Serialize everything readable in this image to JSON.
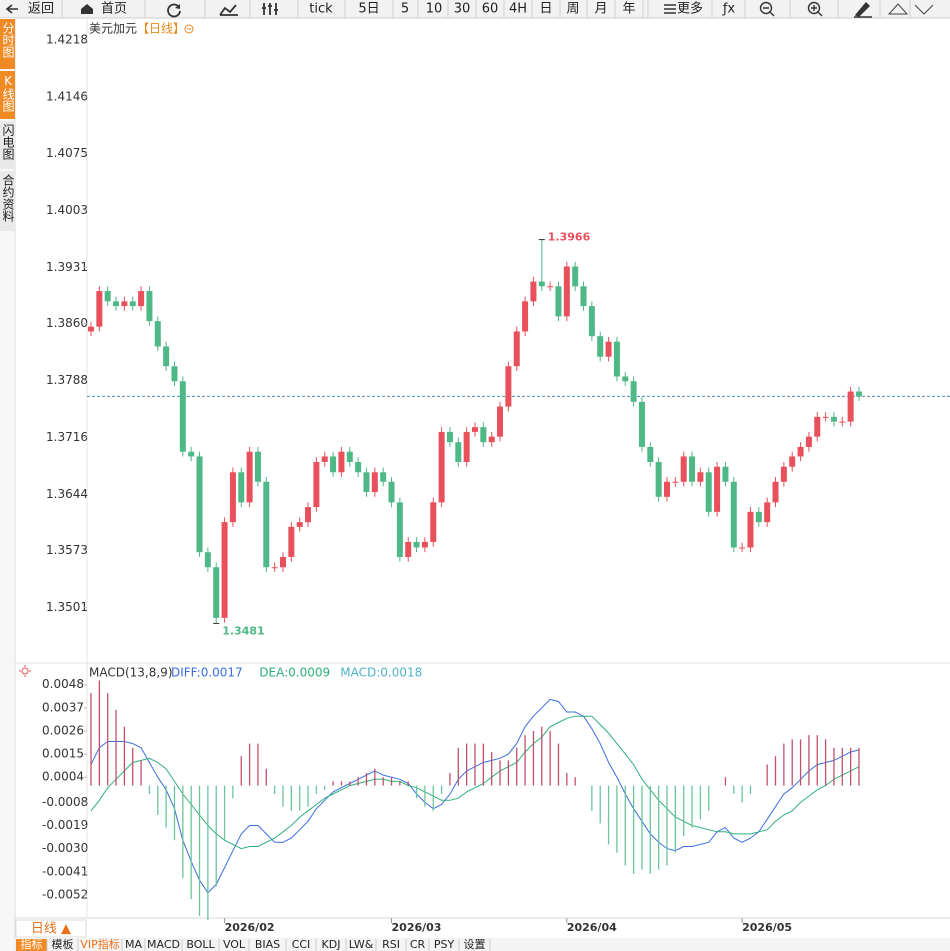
{
  "toolbar": [
    "返回",
    "首页",
    "tick",
    "5日",
    "5",
    "10",
    "30",
    "60",
    "4H",
    "日",
    "周",
    "月",
    "年",
    "更多",
    "ƒx"
  ],
  "sidebar": [
    "分时图",
    "K线图",
    "闪电图",
    "合约资料"
  ],
  "bottom": {
    "period": "日线 ▲",
    "tabs": [
      "指标",
      "模板",
      "VIP指标",
      "MA",
      "MACD",
      "BOLL",
      "VOL",
      "BIAS",
      "CCI",
      "KDJ",
      "LW&",
      "RSI",
      "CR",
      "PSY",
      "设置"
    ]
  },
  "chart_data": [
    {
      "type": "candlestick",
      "title": "美元加元",
      "subtitle": "【日线】",
      "up_color": "#e8505b",
      "down_color": "#4fb887",
      "categories": [
        null,
        null,
        null,
        null,
        null,
        null,
        null,
        null,
        null,
        null,
        null,
        null,
        null,
        null,
        null,
        null,
        "2026/02",
        null,
        null,
        null,
        null,
        null,
        null,
        null,
        null,
        null,
        null,
        null,
        null,
        null,
        null,
        null,
        null,
        null,
        null,
        null,
        "2026/03",
        null,
        null,
        null,
        null,
        null,
        null,
        null,
        null,
        null,
        null,
        null,
        null,
        null,
        null,
        null,
        null,
        null,
        null,
        null,
        null,
        "2026/04",
        null,
        null,
        null,
        null,
        null,
        null,
        null,
        null,
        null,
        null,
        null,
        null,
        null,
        null,
        null,
        null,
        null,
        null,
        null,
        null,
        "2026/05",
        null,
        null,
        null,
        null,
        null,
        null,
        null,
        null,
        null,
        null,
        null,
        null,
        null,
        null
      ],
      "open": [
        1.385,
        1.3856,
        1.3901,
        1.3888,
        1.3882,
        1.3888,
        1.3882,
        1.3901,
        1.3863,
        1.3831,
        1.3806,
        1.3787,
        1.3698,
        1.3692,
        1.3571,
        1.3552,
        1.3488,
        1.3609,
        1.3672,
        1.3634,
        1.3698,
        1.366,
        1.3552,
        1.3552,
        1.3565,
        1.3603,
        1.3609,
        1.3628,
        1.3685,
        1.3692,
        1.3672,
        1.3698,
        1.3685,
        1.3672,
        1.3647,
        1.3672,
        1.366,
        1.3634,
        1.3565,
        1.3584,
        1.3577,
        1.3584,
        1.3634,
        1.3723,
        1.371,
        1.3685,
        1.3723,
        1.3729,
        1.371,
        1.3717,
        1.3755,
        1.3806,
        1.385,
        1.3888,
        1.3913,
        1.3907,
        1.3907,
        1.3869,
        1.3932,
        1.3907,
        1.3882,
        1.3844,
        1.3818,
        1.3837,
        1.3793,
        1.3787,
        1.3761,
        1.3704,
        1.3685,
        1.3641,
        1.366,
        1.366,
        1.3692,
        1.366,
        1.3672,
        1.3622,
        1.3679,
        1.366,
        1.3577,
        1.3577,
        1.3622,
        1.3609,
        1.3634,
        1.366,
        1.3679,
        1.3692,
        1.3704,
        1.3717,
        1.3742,
        1.3742,
        1.3736,
        1.3736,
        1.3774
      ],
      "high": [
        1.3862,
        1.3907,
        1.3907,
        1.3894,
        1.3894,
        1.3894,
        1.3907,
        1.3907,
        1.3869,
        1.3837,
        1.3812,
        1.3793,
        1.3704,
        1.3698,
        1.3577,
        1.3558,
        1.3615,
        1.3678,
        1.3678,
        1.3704,
        1.3704,
        1.3666,
        1.3558,
        1.3571,
        1.3609,
        1.3615,
        1.3634,
        1.3691,
        1.3698,
        1.3698,
        1.3704,
        1.3704,
        1.3691,
        1.3678,
        1.3678,
        1.3678,
        1.3666,
        1.364,
        1.359,
        1.359,
        1.359,
        1.364,
        1.3729,
        1.3729,
        1.3716,
        1.3729,
        1.3735,
        1.3735,
        1.3723,
        1.3761,
        1.3812,
        1.3856,
        1.3894,
        1.3919,
        1.3966,
        1.3913,
        1.3913,
        1.3938,
        1.3938,
        1.3913,
        1.3888,
        1.385,
        1.3843,
        1.3843,
        1.3799,
        1.3793,
        1.3767,
        1.371,
        1.3691,
        1.3666,
        1.3666,
        1.3698,
        1.3698,
        1.3678,
        1.3678,
        1.3685,
        1.3685,
        1.3666,
        1.3583,
        1.3628,
        1.3628,
        1.364,
        1.3666,
        1.3685,
        1.3698,
        1.371,
        1.3723,
        1.3748,
        1.3748,
        1.3748,
        1.3742,
        1.378,
        1.378
      ],
      "low": [
        1.3844,
        1.385,
        1.3882,
        1.3876,
        1.3876,
        1.3876,
        1.3876,
        1.3857,
        1.3825,
        1.38,
        1.3781,
        1.3692,
        1.3686,
        1.3565,
        1.3546,
        1.3481,
        1.3482,
        1.3603,
        1.3628,
        1.3628,
        1.3654,
        1.3546,
        1.3546,
        1.3546,
        1.3559,
        1.3597,
        1.3603,
        1.3622,
        1.3679,
        1.3666,
        1.3666,
        1.3679,
        1.3666,
        1.3641,
        1.3641,
        1.3654,
        1.3628,
        1.3559,
        1.3559,
        1.3571,
        1.3571,
        1.3578,
        1.3628,
        1.3704,
        1.3679,
        1.3679,
        1.3717,
        1.3704,
        1.3704,
        1.3711,
        1.3749,
        1.38,
        1.3844,
        1.3882,
        1.3901,
        1.3901,
        1.3863,
        1.3863,
        1.3901,
        1.3876,
        1.3838,
        1.3812,
        1.3812,
        1.3787,
        1.3781,
        1.3755,
        1.3698,
        1.3679,
        1.3635,
        1.3635,
        1.3654,
        1.3654,
        1.3654,
        1.3654,
        1.3616,
        1.3616,
        1.3654,
        1.3571,
        1.3571,
        1.3571,
        1.3603,
        1.3603,
        1.3628,
        1.3654,
        1.3673,
        1.3686,
        1.3698,
        1.3711,
        1.3736,
        1.373,
        1.373,
        1.373,
        1.3762
      ],
      "close": [
        1.3856,
        1.3901,
        1.3888,
        1.3882,
        1.3888,
        1.3882,
        1.3901,
        1.3863,
        1.3831,
        1.3806,
        1.3787,
        1.3698,
        1.3692,
        1.3571,
        1.3552,
        1.3488,
        1.3609,
        1.3672,
        1.3634,
        1.3698,
        1.366,
        1.3552,
        1.3552,
        1.3565,
        1.3603,
        1.3609,
        1.3628,
        1.3685,
        1.3692,
        1.3672,
        1.3698,
        1.3685,
        1.3672,
        1.3647,
        1.3672,
        1.366,
        1.3634,
        1.3565,
        1.3584,
        1.3577,
        1.3584,
        1.3634,
        1.3723,
        1.371,
        1.3685,
        1.3723,
        1.3729,
        1.371,
        1.3717,
        1.3755,
        1.3806,
        1.385,
        1.3888,
        1.3913,
        1.3907,
        1.3907,
        1.3869,
        1.3932,
        1.3907,
        1.3882,
        1.3844,
        1.3818,
        1.3837,
        1.3793,
        1.3787,
        1.3761,
        1.3704,
        1.3685,
        1.3641,
        1.366,
        1.366,
        1.3692,
        1.366,
        1.3672,
        1.3622,
        1.3679,
        1.366,
        1.3577,
        1.3577,
        1.3622,
        1.3609,
        1.3634,
        1.366,
        1.3679,
        1.3692,
        1.3704,
        1.3717,
        1.3742,
        1.3742,
        1.3736,
        1.3736,
        1.3774,
        1.3768
      ],
      "ylim": [
        1.3431,
        1.4246
      ],
      "yticks": [
        1.4218,
        1.4146,
        1.4075,
        1.4003,
        1.3931,
        {
          "value": 1.386,
          "label": "1.3860"
        },
        1.3788,
        1.3716,
        1.3644,
        1.3573,
        1.3501
      ]
    },
    {
      "type": "macd",
      "title": "MACD(13,8,9)",
      "up_color": "#c0506a",
      "down_color": "#6cc49a",
      "ylim": [
        -0.0063,
        0.0055
      ],
      "yticks": [
        0.0048,
        0.0037,
        0.0026,
        0.0015,
        0.0004,
        -0.0008,
        -0.0019,
        {
          "value": -0.003,
          "label": "-0.0030"
        },
        -0.0041,
        -0.0052
      ],
      "series": [
        {
          "name": "DIFF:0.0017",
          "color": "#3a6fe0",
          "values": [
            0.001,
            0.0018,
            0.0021,
            0.0021,
            0.0021,
            0.002,
            0.0018,
            0.0011,
            0.0004,
            -0.0002,
            -0.0011,
            -0.0026,
            -0.0036,
            -0.0045,
            -0.0051,
            -0.0047,
            -0.0039,
            -0.0031,
            -0.0023,
            -0.0019,
            -0.0019,
            -0.0023,
            -0.0027,
            -0.0027,
            -0.0025,
            -0.0021,
            -0.0017,
            -0.0011,
            -0.0007,
            -0.0003,
            -0.0001,
            0.0001,
            0.0003,
            0.0005,
            0.0007,
            0.0005,
            0.0004,
            0.0003,
            0.0001,
            -0.0004,
            -0.0008,
            -0.0011,
            -0.0009,
            -0.0004,
            0.0003,
            0.0007,
            0.0009,
            0.0011,
            0.0012,
            0.0013,
            0.0015,
            0.002,
            0.0028,
            0.0033,
            0.0037,
            0.0041,
            0.004,
            0.0035,
            0.0035,
            0.0033,
            0.0027,
            0.002,
            0.0011,
            0.0004,
            -0.0004,
            -0.0011,
            -0.0017,
            -0.0023,
            -0.0027,
            -0.003,
            -0.0031,
            -0.0029,
            -0.0029,
            -0.0028,
            -0.0027,
            -0.0022,
            -0.002,
            -0.0025,
            -0.0027,
            -0.0025,
            -0.0022,
            -0.0016,
            -0.001,
            -0.0004,
            -0.0001,
            0.0003,
            0.0007,
            0.001,
            0.0011,
            0.0012,
            0.0014,
            0.0016,
            0.0017
          ]
        },
        {
          "name": "DEA:0.0009",
          "color": "#2fb07a",
          "values": [
            -0.0012,
            -0.0007,
            -0.0001,
            0.0003,
            0.0007,
            0.0011,
            0.0012,
            0.0013,
            0.0011,
            0.0008,
            0.0002,
            -0.0004,
            -0.0009,
            -0.0014,
            -0.0019,
            -0.0023,
            -0.0026,
            -0.0028,
            -0.003,
            -0.0029,
            -0.0029,
            -0.0027,
            -0.0025,
            -0.0022,
            -0.0019,
            -0.0015,
            -0.0012,
            -0.0009,
            -0.0006,
            -0.0004,
            -0.0002,
            0,
            0.0001,
            0.0002,
            0.0003,
            0.0003,
            0.0002,
            0.0002,
            0,
            -0.0001,
            -0.0003,
            -0.0005,
            -0.0007,
            -0.0007,
            -0.0006,
            -0.0003,
            -0.0001,
            0.0001,
            0.0004,
            0.0007,
            0.0009,
            0.0011,
            0.0016,
            0.002,
            0.0023,
            0.0028,
            0.003,
            0.0032,
            0.0033,
            0.0033,
            0.0033,
            0.0029,
            0.0025,
            0.002,
            0.0015,
            0.001,
            0.0003,
            -0.0002,
            -0.0007,
            -0.0011,
            -0.0015,
            -0.0017,
            -0.0019,
            -0.002,
            -0.0021,
            -0.0022,
            -0.0022,
            -0.0023,
            -0.0023,
            -0.0023,
            -0.0022,
            -0.0021,
            -0.0017,
            -0.0014,
            -0.0012,
            -0.0008,
            -0.0005,
            -0.0002,
            0,
            0.0003,
            0.0005,
            0.0007,
            0.0009
          ]
        },
        {
          "name": "MACD:0.0018",
          "color": "#4fb3c9",
          "type": "hist",
          "values": [
            0.0044,
            0.005,
            0.0044,
            0.0036,
            0.0028,
            0.0018,
            0.0012,
            -0.0004,
            -0.0014,
            -0.002,
            -0.0026,
            -0.0044,
            -0.0054,
            -0.0062,
            -0.0064,
            -0.0048,
            -0.0026,
            -0.0006,
            0.0014,
            0.002,
            0.002,
            0.0008,
            -0.0004,
            -0.001,
            -0.0012,
            -0.0012,
            -0.001,
            -0.0004,
            -0.0002,
            0.0002,
            0.0002,
            0.0002,
            0.0004,
            0.0006,
            0.0008,
            0.0004,
            0.0004,
            0.0002,
            0.0002,
            -0.0006,
            -0.001,
            -0.0012,
            -0.0004,
            0.0006,
            0.0018,
            0.002,
            0.002,
            0.002,
            0.0016,
            0.0012,
            0.0012,
            0.0018,
            0.0024,
            0.0026,
            0.0028,
            0.0026,
            0.002,
            0.0006,
            0.0004,
            0,
            -0.0012,
            -0.0018,
            -0.0028,
            -0.0032,
            -0.0038,
            -0.0042,
            -0.004,
            -0.0042,
            -0.004,
            -0.0038,
            -0.0032,
            -0.0024,
            -0.002,
            -0.0016,
            -0.0012,
            0,
            0.0004,
            -0.0004,
            -0.0008,
            -0.0004,
            0,
            0.001,
            0.0014,
            0.002,
            0.0022,
            0.0022,
            0.0024,
            0.0024,
            0.0022,
            0.0018,
            0.0018,
            0.0018,
            0.0018
          ]
        }
      ]
    }
  ]
}
